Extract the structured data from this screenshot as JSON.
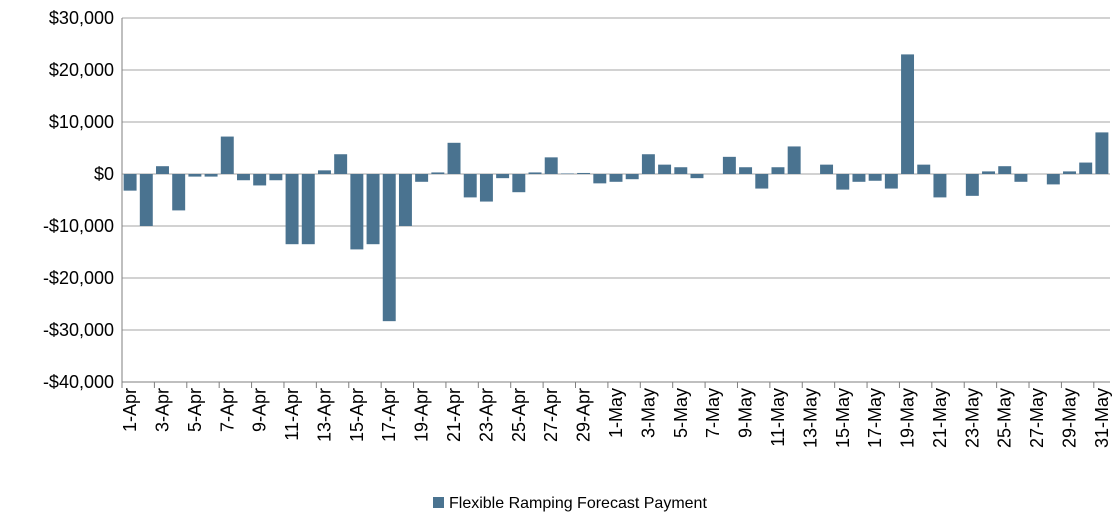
{
  "chart_data": {
    "type": "bar",
    "categories": [
      "1-Apr",
      null,
      "3-Apr",
      null,
      "5-Apr",
      null,
      "7-Apr",
      null,
      "9-Apr",
      null,
      "11-Apr",
      null,
      "13-Apr",
      null,
      "15-Apr",
      null,
      "17-Apr",
      null,
      "19-Apr",
      null,
      "21-Apr",
      null,
      "23-Apr",
      null,
      "25-Apr",
      null,
      "27-Apr",
      null,
      "29-Apr",
      null,
      "1-May",
      null,
      "3-May",
      null,
      "5-May",
      null,
      "7-May",
      null,
      "9-May",
      null,
      "11-May",
      null,
      "13-May",
      null,
      "15-May",
      null,
      "17-May",
      null,
      "19-May",
      null,
      "21-May",
      null,
      "23-May",
      null,
      "25-May",
      null,
      "27-May",
      null,
      "29-May",
      null,
      "31-May"
    ],
    "series": [
      {
        "name": "Flexible Ramping Forecast Payment",
        "color": "#4a7390",
        "values": [
          -3200,
          -10000,
          1500,
          -7000,
          -500,
          -500,
          7200,
          -1200,
          -2200,
          -1200,
          -13500,
          -13500,
          700,
          3800,
          -14500,
          -13500,
          -28300,
          -10000,
          -1500,
          300,
          6000,
          -4500,
          -5300,
          -800,
          -3500,
          300,
          3200,
          100,
          200,
          -1800,
          -1500,
          -1000,
          3800,
          1800,
          1300,
          -800,
          0,
          3300,
          1300,
          -2800,
          1300,
          5300,
          0,
          1800,
          -3000,
          -1500,
          -1300,
          -2800,
          23000,
          1800,
          -4500,
          0,
          -4200,
          500,
          1500,
          -1500,
          0,
          -2000,
          500,
          2200,
          8000
        ]
      }
    ],
    "ylim": [
      -40000,
      30000
    ],
    "yticks": [
      {
        "value": -40000,
        "label": "-$40,000"
      },
      {
        "value": -30000,
        "label": "-$30,000"
      },
      {
        "value": -20000,
        "label": "-$20,000"
      },
      {
        "value": -10000,
        "label": "-$10,000"
      },
      {
        "value": 0,
        "label": "$0"
      },
      {
        "value": 10000,
        "label": "$10,000"
      },
      {
        "value": 20000,
        "label": "$20,000"
      },
      {
        "value": 30000,
        "label": "$30,000"
      }
    ],
    "grid": true,
    "legend": "bottom"
  }
}
